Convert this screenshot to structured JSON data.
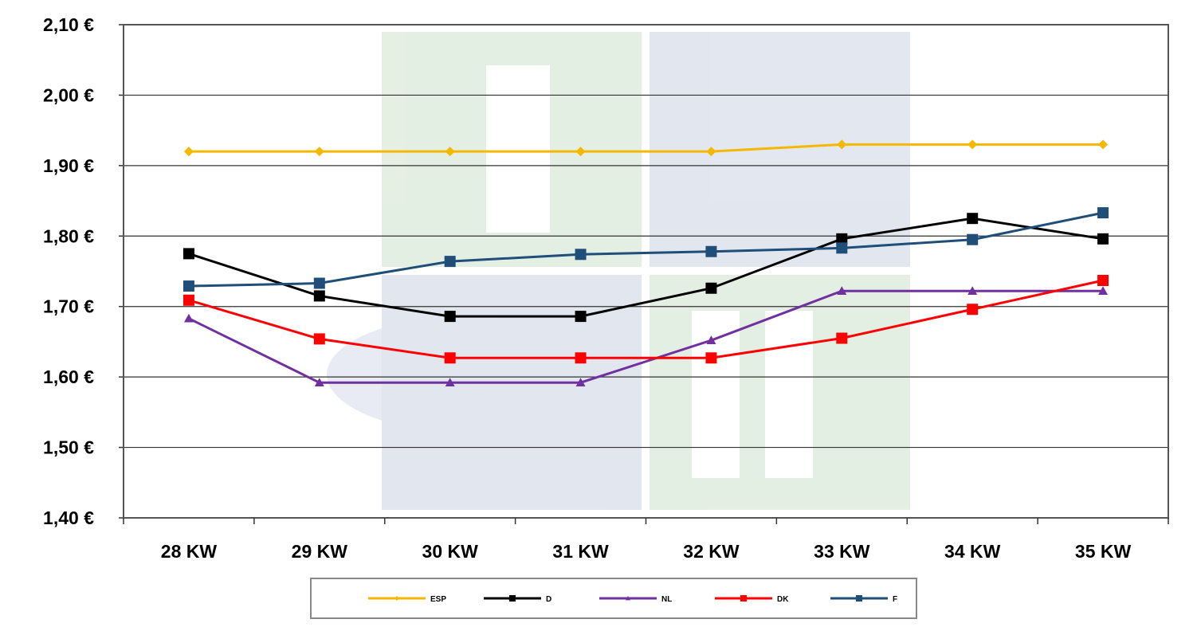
{
  "chart_data": {
    "type": "line",
    "title": "",
    "xlabel": "",
    "ylabel": "",
    "categories": [
      "28 KW",
      "29 KW",
      "30 KW",
      "31 KW",
      "32 KW",
      "33 KW",
      "34 KW",
      "35 KW"
    ],
    "yticks": [
      "1,40 €",
      "1,50 €",
      "1,60 €",
      "1,70 €",
      "1,80 €",
      "1,90 €",
      "2,00 €",
      "2,10 €"
    ],
    "ylim": [
      1.4,
      2.1
    ],
    "grid": true,
    "legend_position": "bottom",
    "series": [
      {
        "name": "ESP",
        "color": "#f5b800",
        "marker": "diamond",
        "values": [
          1.92,
          1.92,
          1.92,
          1.92,
          1.92,
          1.93,
          1.93,
          1.93
        ]
      },
      {
        "name": "D",
        "color": "#000000",
        "marker": "square",
        "values": [
          1.775,
          1.715,
          1.686,
          1.686,
          1.726,
          1.796,
          1.825,
          1.796
        ]
      },
      {
        "name": "NL",
        "color": "#7030a0",
        "marker": "triangle",
        "values": [
          1.683,
          1.592,
          1.592,
          1.592,
          1.652,
          1.722,
          1.722,
          1.722
        ]
      },
      {
        "name": "DK",
        "color": "#ff0000",
        "marker": "square",
        "values": [
          1.709,
          1.654,
          1.627,
          1.627,
          1.627,
          1.655,
          1.696,
          1.737
        ]
      },
      {
        "name": "F",
        "color": "#1f4e79",
        "marker": "square",
        "values": [
          1.729,
          1.733,
          1.764,
          1.774,
          1.778,
          1.783,
          1.795,
          1.833
        ]
      }
    ],
    "watermark": "ISN"
  }
}
